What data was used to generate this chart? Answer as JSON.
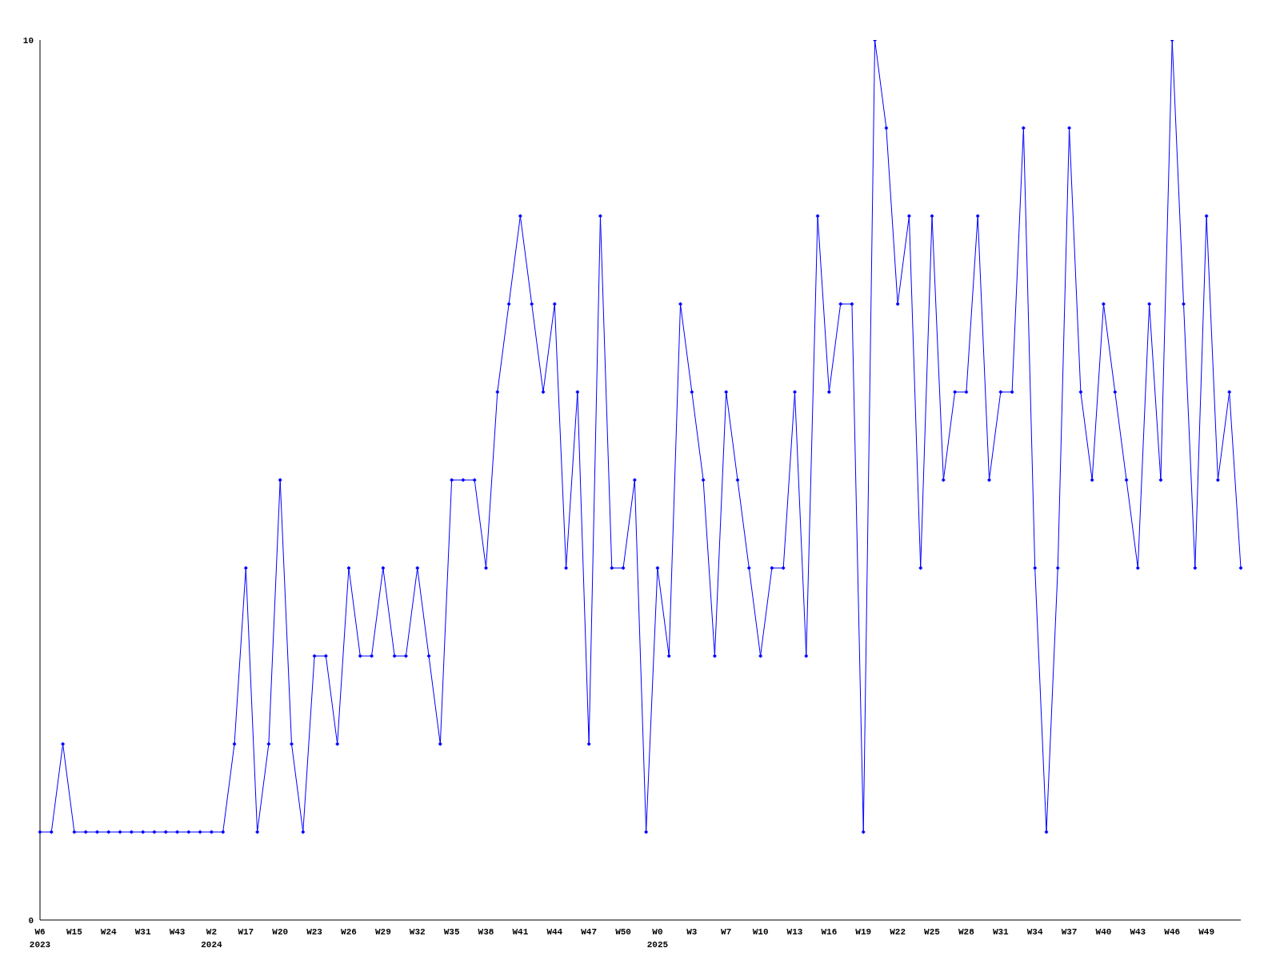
{
  "chart_data": {
    "type": "line",
    "categories": [
      "W6\n2023",
      null,
      null,
      "W15",
      null,
      null,
      "W24",
      null,
      null,
      "W31",
      null,
      null,
      "W43",
      null,
      null,
      "W2\n2024",
      null,
      null,
      "W17",
      null,
      null,
      "W20",
      null,
      null,
      "W23",
      null,
      null,
      "W26",
      null,
      null,
      "W29",
      null,
      null,
      "W32",
      null,
      null,
      "W35",
      null,
      null,
      "W38",
      null,
      null,
      "W41",
      null,
      null,
      "W44",
      null,
      null,
      "W47",
      null,
      null,
      "W50",
      null,
      null,
      "W0\n2025",
      null,
      null,
      "W3",
      null,
      null,
      "W7",
      null,
      null,
      "W10",
      null,
      null,
      "W13",
      null,
      null,
      "W16",
      null,
      null,
      "W19",
      null,
      null,
      "W22",
      null,
      null,
      "W25",
      null,
      null,
      "W28",
      null,
      null,
      "W31",
      null,
      null,
      "W34",
      null,
      null,
      "W37",
      null,
      null,
      "W40",
      null,
      null,
      "W43",
      null,
      null,
      "W46",
      null,
      null,
      "W49",
      null,
      null,
      null
    ],
    "values": [
      1,
      1,
      2,
      1,
      1,
      1,
      1,
      1,
      1,
      1,
      1,
      1,
      1,
      1,
      1,
      1,
      1,
      2,
      4,
      1,
      2,
      5,
      2,
      1,
      3,
      3,
      2,
      4,
      3,
      3,
      4,
      3,
      3,
      4,
      3,
      2,
      5,
      5,
      5,
      4,
      6,
      7,
      8,
      7,
      6,
      7,
      4,
      6,
      2,
      8,
      4,
      4,
      5,
      1,
      4,
      3,
      7,
      6,
      5,
      3,
      6,
      5,
      4,
      3,
      4,
      4,
      6,
      3,
      8,
      6,
      7,
      7,
      1,
      10,
      9,
      7,
      8,
      4,
      8,
      5,
      6,
      6,
      8,
      5,
      6,
      6,
      9,
      4,
      1,
      4,
      9,
      6,
      5,
      7,
      6,
      5,
      4,
      7,
      5,
      10,
      7,
      4,
      8,
      5,
      6,
      4
    ],
    "color": "#0000ff",
    "marker": "diamond",
    "ylim": [
      0,
      10
    ],
    "yticks": [
      0,
      10
    ]
  }
}
